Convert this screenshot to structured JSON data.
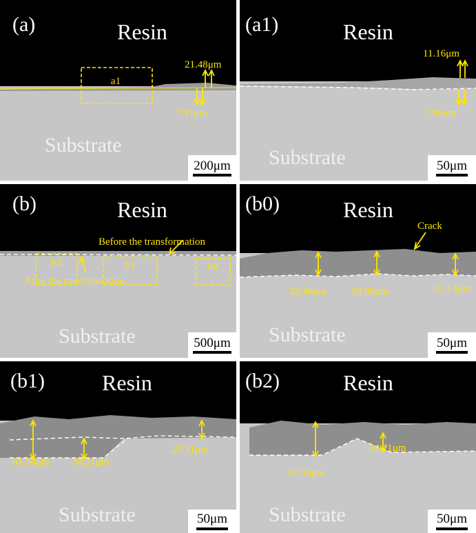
{
  "panels": [
    {
      "label": "(a)",
      "top": "Resin",
      "bottom": "Substrate",
      "scale_bar": "200μm",
      "annotations": [
        "a1",
        "21.48μm",
        "7.91μm"
      ]
    },
    {
      "label": "(a1)",
      "top": "Resin",
      "bottom": "Substrate",
      "scale_bar": "50μm",
      "annotations": [
        "11.16μm",
        "7.96μm"
      ]
    },
    {
      "label": "(b)",
      "top": "Resin",
      "bottom": "Substrate",
      "scale_bar": "500μm",
      "annotations": [
        "b2",
        "b1",
        "b0",
        "Before the transformation",
        "After the transformation"
      ]
    },
    {
      "label": "(b0)",
      "top": "Resin",
      "bottom": "Substrate",
      "scale_bar": "50μm",
      "annotations": [
        "Crack",
        "32.46μm",
        "33.98μm",
        "31.14μm"
      ]
    },
    {
      "label": "(b1)",
      "top": "Resin",
      "bottom": "Substrate",
      "scale_bar": "50μm",
      "annotations": [
        "61.54μm",
        "34.21μm",
        "25.11μm"
      ]
    },
    {
      "label": "(b2)",
      "top": "Resin",
      "bottom": "Substrate",
      "scale_bar": "50μm",
      "annotations": [
        "61.56μm",
        "34.21μm"
      ]
    }
  ]
}
